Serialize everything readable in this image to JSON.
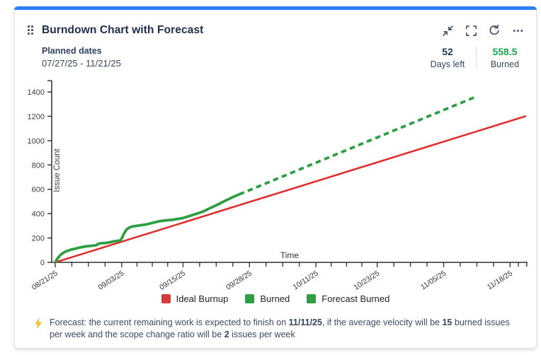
{
  "header": {
    "title": "Burndown Chart with Forecast",
    "icons": [
      {
        "name": "collapse-icon"
      },
      {
        "name": "fullscreen-icon"
      },
      {
        "name": "refresh-icon"
      },
      {
        "name": "more-icon"
      }
    ]
  },
  "meta": {
    "planned_dates_label": "Planned dates",
    "planned_dates_value": "07/27/25 - 11/21/25",
    "days_left_value": "52",
    "days_left_label": "Days left",
    "burned_value": "558.5",
    "burned_label": "Burned",
    "burned_color": "#1ea24e"
  },
  "chart_data": {
    "type": "line",
    "xlabel": "Time",
    "ylabel": "Issue Count",
    "x_unit": "days since 08/21/25",
    "xlim": [
      0,
      92.4
    ],
    "ylim": [
      0,
      1493
    ],
    "y_ticks": [
      0,
      200,
      400,
      600,
      800,
      1000,
      1200,
      1400
    ],
    "x_tick_days": [
      0,
      13,
      25,
      38,
      51,
      63,
      76,
      89
    ],
    "x_tick_labels": [
      "08/21/25",
      "09/03/25",
      "09/15/25",
      "09/28/25",
      "10/11/25",
      "10/23/25",
      "11/05/25",
      "11/18/25"
    ],
    "grid": false,
    "legend_position": "bottom",
    "series": [
      {
        "name": "Ideal Burnup",
        "color": "#e02f2f",
        "style": "solid",
        "width": 2.6,
        "points": [
          [
            0,
            0
          ],
          [
            92,
            1200
          ]
        ]
      },
      {
        "name": "Burned",
        "color": "#2f9e44",
        "style": "solid",
        "width": 3.8,
        "points": [
          [
            0,
            0
          ],
          [
            0.5,
            35
          ],
          [
            1,
            60
          ],
          [
            1.5,
            76
          ],
          [
            2,
            88
          ],
          [
            2.5,
            96
          ],
          [
            3,
            104
          ],
          [
            4,
            113
          ],
          [
            5,
            124
          ],
          [
            6,
            131
          ],
          [
            7,
            136
          ],
          [
            8,
            140
          ],
          [
            8.5,
            154
          ],
          [
            9,
            157
          ],
          [
            10,
            160
          ],
          [
            11,
            168
          ],
          [
            11.5,
            173
          ],
          [
            12,
            176
          ],
          [
            12.7,
            179
          ],
          [
            13,
            195
          ],
          [
            13.5,
            240
          ],
          [
            14,
            272
          ],
          [
            14.5,
            286
          ],
          [
            15,
            294
          ],
          [
            16,
            301
          ],
          [
            17,
            307
          ],
          [
            18,
            313
          ],
          [
            19,
            324
          ],
          [
            20,
            334
          ],
          [
            21,
            342
          ],
          [
            22,
            346
          ],
          [
            23,
            350
          ],
          [
            24,
            357
          ],
          [
            25,
            364
          ],
          [
            26,
            377
          ],
          [
            27,
            391
          ],
          [
            28,
            404
          ],
          [
            29,
            419
          ],
          [
            30,
            440
          ],
          [
            31,
            459
          ],
          [
            32,
            479
          ],
          [
            33,
            501
          ],
          [
            34,
            521
          ],
          [
            35,
            541
          ],
          [
            36,
            558.5
          ]
        ]
      },
      {
        "name": "Forecast Burned",
        "color": "#2f9e44",
        "style": "dashed",
        "width": 3.8,
        "points": [
          [
            36,
            558.5
          ],
          [
            82,
            1355
          ]
        ]
      }
    ],
    "legend": [
      {
        "label": "Ideal Burnup",
        "color": "#d63a3a"
      },
      {
        "label": "Burned",
        "color": "#2f9e44"
      },
      {
        "label": "Forecast Burned",
        "color": "#2f9e44"
      }
    ]
  },
  "footer": {
    "prefix": "Forecast: the current remaining work is expected to finish on ",
    "finish_date": "11/11/25",
    "mid1": ", if the average velocity will be ",
    "velocity": "15",
    "mid2": " burned issues per week and the scope change ratio will be ",
    "ratio": "2",
    "suffix": " issues per week",
    "bolt_color": "#f5bd2e"
  }
}
